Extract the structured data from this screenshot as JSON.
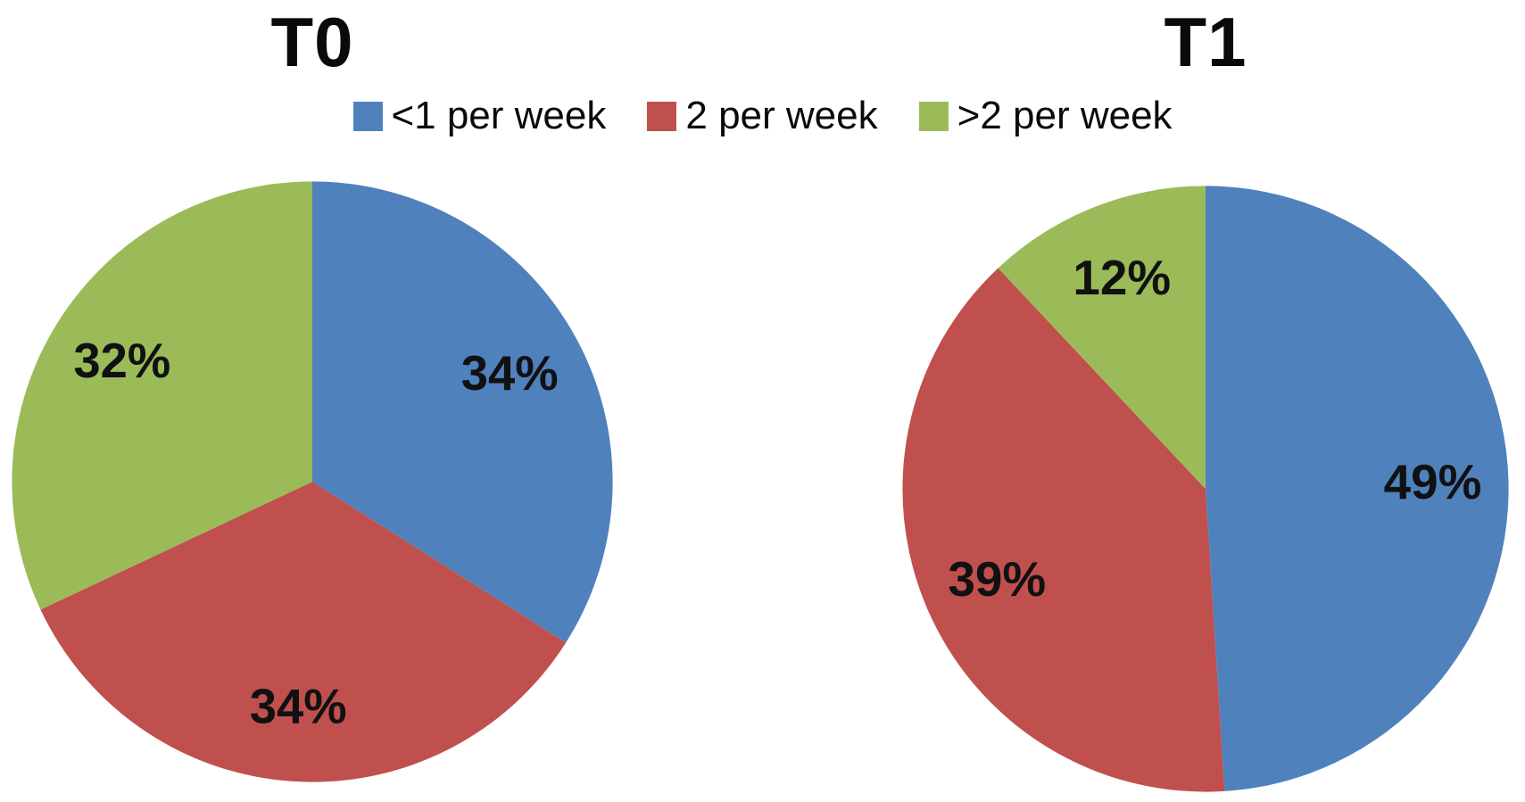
{
  "figure": {
    "background_color": "#ffffff",
    "label_color": "#111111"
  },
  "legend": {
    "position": "top-center",
    "items": [
      {
        "label": "<1 per week",
        "color": "#4F81BD",
        "swatch": "blue-square-icon"
      },
      {
        "label": "2 per week",
        "color": "#C0504D",
        "swatch": "red-square-icon"
      },
      {
        "label": ">2 per week",
        "color": "#9BBB59",
        "swatch": "green-square-icon"
      }
    ]
  },
  "chart_data": [
    {
      "type": "pie",
      "title": "T0",
      "categories": [
        "<1 per week",
        "2 per week",
        ">2 per week"
      ],
      "values": [
        34,
        34,
        32
      ],
      "value_labels": [
        "34%",
        "34%",
        "32%"
      ],
      "colors": [
        "#4F81BD",
        "#C0504D",
        "#9BBB59"
      ],
      "start_angle": 0,
      "direction": "clockwise",
      "label_radius_frac": 0.75,
      "legend_position": "top"
    },
    {
      "type": "pie",
      "title": "T1",
      "categories": [
        "<1 per week",
        "2 per week",
        ">2 per week"
      ],
      "values": [
        49,
        39,
        12
      ],
      "value_labels": [
        "49%",
        "39%",
        "12%"
      ],
      "colors": [
        "#4F81BD",
        "#C0504D",
        "#9BBB59"
      ],
      "start_angle": 0,
      "direction": "clockwise",
      "label_radius_frac": 0.75,
      "legend_position": "top"
    }
  ]
}
